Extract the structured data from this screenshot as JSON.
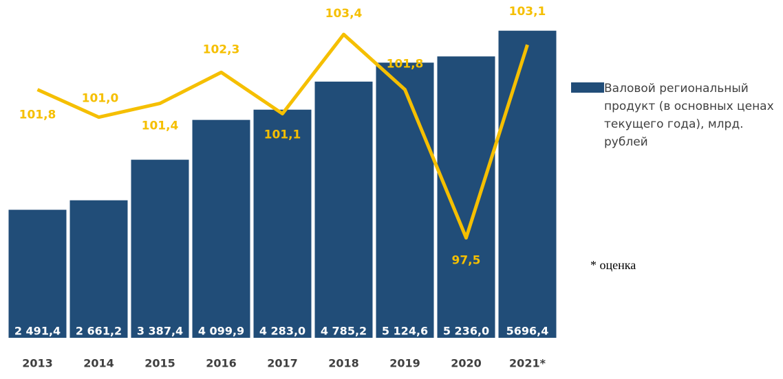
{
  "chart_data": {
    "type": "bar-line",
    "categories": [
      "2013",
      "2014",
      "2015",
      "2016",
      "2017",
      "2018",
      "2019",
      "2020",
      "2021*"
    ],
    "series": [
      {
        "name": "Валовой региональный продукт (в основных ценах текущего года), млрд. рублей",
        "color": "#214d78",
        "type": "bar",
        "values": [
          2491.4,
          2661.2,
          3387.4,
          4099.9,
          4283.0,
          4785.2,
          5124.6,
          5236.0,
          5696.4
        ],
        "value_labels": [
          "2 491,4",
          "2 661,2",
          "3 387,4",
          "4 099,9",
          "4 283,0",
          "4 785,2",
          "5 124,6",
          "5 236,0",
          "5696,4"
        ]
      },
      {
        "color": "#f5bf00",
        "type": "line",
        "axis": "y2",
        "values": [
          101.8,
          101.0,
          101.4,
          102.3,
          101.1,
          103.4,
          101.8,
          97.5,
          103.1
        ],
        "value_labels": [
          "101,8",
          "101,0",
          "101,4",
          "102,3",
          "101,1",
          "103,4",
          "101,8",
          "97,5",
          "103,1"
        ]
      }
    ],
    "ylim": [
      200,
      6000
    ],
    "y2lim": [
      94.6,
      104
    ],
    "note": "* оценка"
  }
}
